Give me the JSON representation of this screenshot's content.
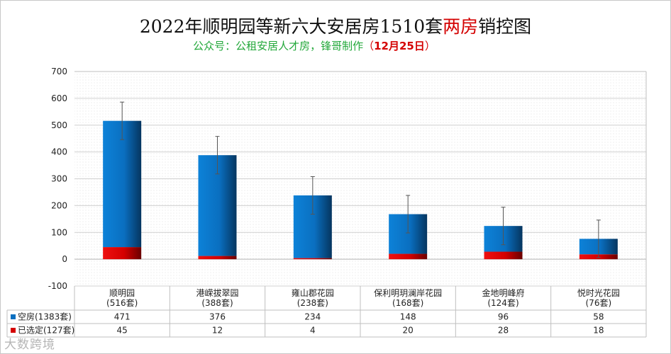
{
  "title": {
    "prefix": "2022年顺明园等新六大安居房1510套",
    "highlight": "两房",
    "suffix": "销控图"
  },
  "subtitle": {
    "text": "公众号：公租安居人才房，锋哥制作",
    "paren_open": "（",
    "date": "12月25日",
    "paren_close": "）"
  },
  "watermark": "大数跨境",
  "colors": {
    "vacant": "#0a6fc0",
    "selected": "#d40000"
  },
  "chart_data": {
    "type": "bar",
    "stacked": true,
    "categories": [
      "顺明园\n(516套)",
      "港嵘拔翠园\n(388套)",
      "雍山郡花园\n(238套)",
      "保利明玥澜岸花园\n(168套)",
      "金地明峰府\n(124套)",
      "悦时光花园\n(76套)"
    ],
    "series": [
      {
        "name": "空房(1383套)",
        "values": [
          471,
          376,
          234,
          148,
          96,
          58
        ],
        "color": "#0a6fc0"
      },
      {
        "name": "已选定(127套)",
        "values": [
          45,
          12,
          4,
          20,
          28,
          18
        ],
        "color": "#d40000"
      }
    ],
    "totals": [
      516,
      388,
      238,
      168,
      124,
      76
    ],
    "error_bar": 70,
    "ylim": [
      -100,
      700
    ],
    "yticks": [
      -100,
      0,
      100,
      200,
      300,
      400,
      500,
      600,
      700
    ],
    "grid": true,
    "legend": "data-table"
  }
}
